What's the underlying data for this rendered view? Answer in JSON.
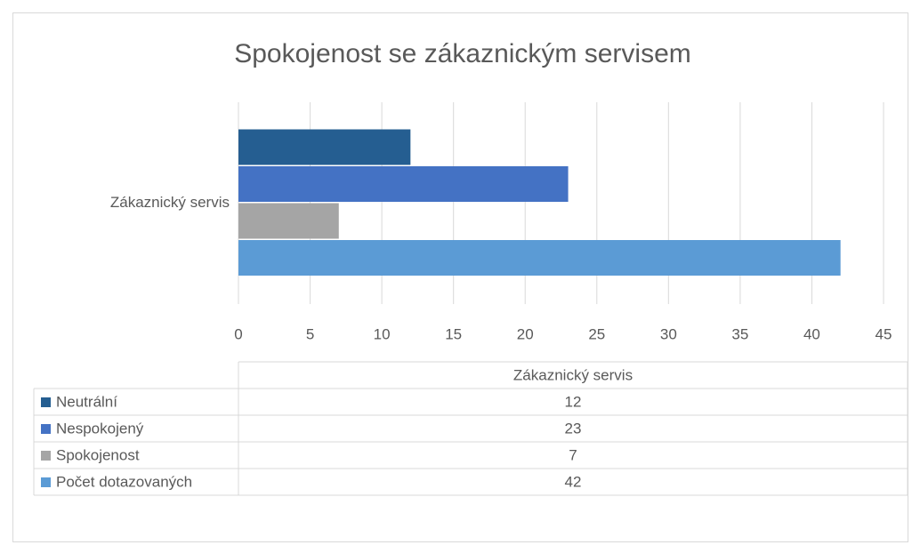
{
  "chart_data": {
    "type": "bar",
    "orientation": "horizontal",
    "data_table": true,
    "title": "Spokojenost se zákaznickým servisem",
    "categories": [
      "Zákaznický servis"
    ],
    "series": [
      {
        "name": "Neutrální",
        "color": "#255e91",
        "values": [
          12
        ]
      },
      {
        "name": "Nespokojený",
        "color": "#4472c4",
        "values": [
          23
        ]
      },
      {
        "name": "Spokojenost",
        "color": "#a5a5a5",
        "values": [
          7
        ]
      },
      {
        "name": "Počet dotazovaných",
        "color": "#5b9bd5",
        "values": [
          42
        ]
      }
    ],
    "xlim": [
      0,
      45
    ],
    "xticks": [
      0,
      5,
      10,
      15,
      20,
      25,
      30,
      35,
      40,
      45
    ],
    "grid": true
  }
}
